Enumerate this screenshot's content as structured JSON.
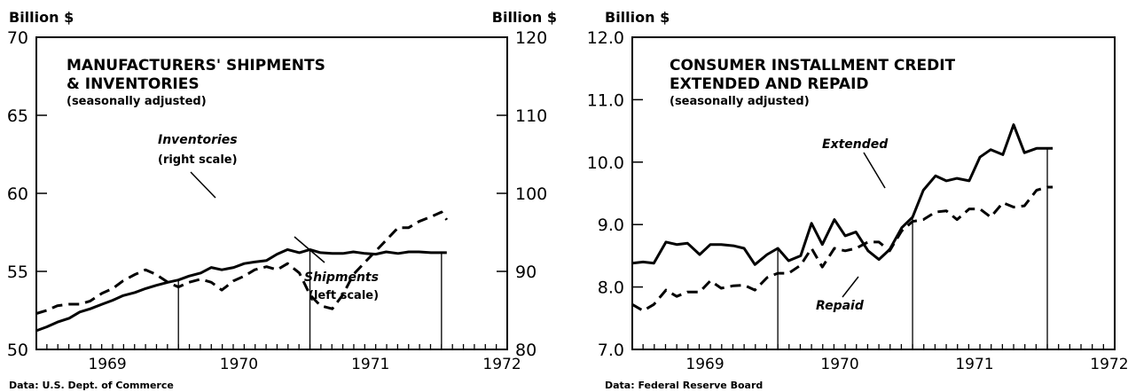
{
  "chart_data": [
    {
      "type": "line",
      "title": [
        "MANUFACTURERS' SHIPMENTS",
        "& INVENTORIES"
      ],
      "subtitle": "(seasonally adjusted)",
      "ylabel_left": "Billion $",
      "ylabel_right": "Billion $",
      "ylim_left": [
        50,
        70
      ],
      "ylim_right": [
        80,
        120
      ],
      "yticks_left": [
        "50",
        "55",
        "60",
        "65",
        "70"
      ],
      "yticks_right": [
        "80",
        "90",
        "100",
        "110",
        "120"
      ],
      "x_years": [
        "1969",
        "1970",
        "1971",
        "1972"
      ],
      "x_range": [
        1968.92,
        1972.5
      ],
      "source": "Data:  U.S. Dept. of Commerce",
      "grid": false,
      "reference_lines_x": [
        1970.0,
        1971.0,
        1972.0
      ],
      "series": [
        {
          "name": "Inventories",
          "label_lines": [
            "Inventories",
            "(right scale)"
          ],
          "axis": "right",
          "style": "solid",
          "x": [
            1968.92,
            1969.0,
            1969.08,
            1969.17,
            1969.25,
            1969.33,
            1969.42,
            1969.5,
            1969.58,
            1969.67,
            1969.75,
            1969.83,
            1969.92,
            1970.0,
            1970.08,
            1970.17,
            1970.25,
            1970.33,
            1970.42,
            1970.5,
            1970.58,
            1970.67,
            1970.75,
            1970.83,
            1970.92,
            1971.0,
            1971.08,
            1971.17,
            1971.25,
            1971.33,
            1971.42,
            1971.5,
            1971.58,
            1971.67,
            1971.75,
            1971.83,
            1971.92,
            1972.0,
            1972.04
          ],
          "y": [
            82.4,
            82.9,
            83.5,
            84.0,
            84.8,
            85.2,
            85.8,
            86.3,
            86.9,
            87.3,
            87.8,
            88.2,
            88.6,
            88.9,
            89.4,
            89.8,
            90.5,
            90.2,
            90.5,
            91.0,
            91.2,
            91.4,
            92.2,
            92.8,
            92.4,
            92.8,
            92.4,
            92.3,
            92.3,
            92.5,
            92.3,
            92.2,
            92.5,
            92.3,
            92.5,
            92.5,
            92.4,
            92.4,
            92.4
          ]
        },
        {
          "name": "Shipments",
          "label_lines": [
            "Shipments",
            "(left scale)"
          ],
          "axis": "left",
          "style": "dashed",
          "x": [
            1968.92,
            1969.0,
            1969.08,
            1969.17,
            1969.25,
            1969.33,
            1969.42,
            1969.5,
            1969.58,
            1969.67,
            1969.75,
            1969.83,
            1969.92,
            1970.0,
            1970.08,
            1970.17,
            1970.25,
            1970.33,
            1970.42,
            1970.5,
            1970.58,
            1970.67,
            1970.75,
            1970.83,
            1970.92,
            1971.0,
            1971.08,
            1971.17,
            1971.25,
            1971.33,
            1971.42,
            1971.5,
            1971.58,
            1971.67,
            1971.75,
            1971.83,
            1971.92,
            1972.0,
            1972.04
          ],
          "y": [
            52.3,
            52.5,
            52.8,
            52.9,
            52.9,
            53.1,
            53.6,
            53.9,
            54.4,
            54.8,
            55.1,
            54.8,
            54.3,
            54.0,
            54.3,
            54.5,
            54.3,
            53.8,
            54.4,
            54.7,
            55.1,
            55.3,
            55.1,
            55.5,
            54.9,
            53.5,
            52.8,
            52.6,
            53.5,
            54.8,
            55.6,
            56.3,
            57.0,
            57.8,
            57.8,
            58.2,
            58.5,
            58.8,
            58.3
          ]
        }
      ]
    },
    {
      "type": "line",
      "title": [
        "CONSUMER INSTALLMENT CREDIT",
        "EXTENDED AND REPAID"
      ],
      "subtitle": "(seasonally adjusted)",
      "ylabel": "Billion $",
      "ylim": [
        7.0,
        12.0
      ],
      "yticks": [
        "7.0",
        "8.0",
        "9.0",
        "10.0",
        "11.0",
        "12.0"
      ],
      "x_years": [
        "1969",
        "1970",
        "1971",
        "1972"
      ],
      "x_range": [
        1968.92,
        1972.5
      ],
      "source": "Data:  Federal Reserve Board",
      "grid": false,
      "reference_lines_x": [
        1970.0,
        1971.0,
        1972.0
      ],
      "series": [
        {
          "name": "Extended",
          "style": "solid",
          "x": [
            1968.92,
            1969.0,
            1969.08,
            1969.17,
            1969.25,
            1969.33,
            1969.42,
            1969.5,
            1969.58,
            1969.67,
            1969.75,
            1969.83,
            1969.92,
            1970.0,
            1970.08,
            1970.17,
            1970.25,
            1970.33,
            1970.42,
            1970.5,
            1970.58,
            1970.67,
            1970.75,
            1970.83,
            1970.92,
            1971.0,
            1971.08,
            1971.17,
            1971.25,
            1971.33,
            1971.42,
            1971.5,
            1971.58,
            1971.67,
            1971.75,
            1971.83,
            1971.92,
            1972.0,
            1972.04
          ],
          "y": [
            8.38,
            8.4,
            8.38,
            8.72,
            8.68,
            8.7,
            8.52,
            8.68,
            8.68,
            8.66,
            8.62,
            8.36,
            8.52,
            8.62,
            8.42,
            8.5,
            9.02,
            8.68,
            9.08,
            8.82,
            8.88,
            8.58,
            8.44,
            8.6,
            8.95,
            9.12,
            9.55,
            9.78,
            9.7,
            9.74,
            9.7,
            10.08,
            10.2,
            10.12,
            10.6,
            10.15,
            10.22,
            10.22,
            10.22
          ]
        },
        {
          "name": "Repaid",
          "style": "dashed",
          "x": [
            1968.92,
            1969.0,
            1969.08,
            1969.17,
            1969.25,
            1969.33,
            1969.42,
            1969.5,
            1969.58,
            1969.67,
            1969.75,
            1969.83,
            1969.92,
            1970.0,
            1970.08,
            1970.17,
            1970.25,
            1970.33,
            1970.42,
            1970.5,
            1970.58,
            1970.67,
            1970.75,
            1970.83,
            1970.92,
            1971.0,
            1971.08,
            1971.17,
            1971.25,
            1971.33,
            1971.42,
            1971.5,
            1971.58,
            1971.67,
            1971.75,
            1971.83,
            1971.92,
            1972.0,
            1972.04
          ],
          "y": [
            7.72,
            7.62,
            7.72,
            7.95,
            7.85,
            7.92,
            7.92,
            8.1,
            7.98,
            8.02,
            8.03,
            7.95,
            8.15,
            8.22,
            8.22,
            8.35,
            8.62,
            8.32,
            8.62,
            8.58,
            8.62,
            8.72,
            8.72,
            8.58,
            8.9,
            9.05,
            9.08,
            9.2,
            9.22,
            9.08,
            9.25,
            9.25,
            9.12,
            9.35,
            9.28,
            9.3,
            9.55,
            9.6,
            9.6
          ]
        }
      ]
    }
  ]
}
